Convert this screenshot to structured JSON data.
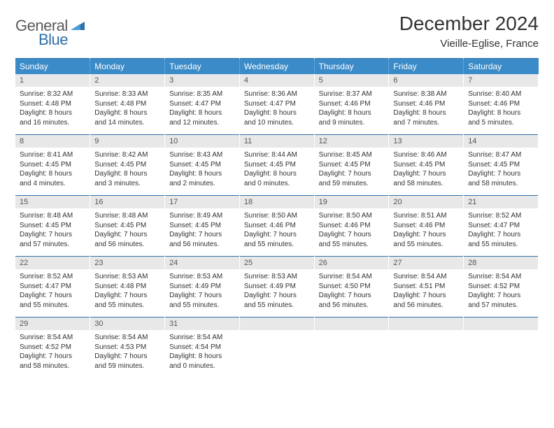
{
  "brand": {
    "part1": "General",
    "part2": "Blue"
  },
  "title": "December 2024",
  "location": "Vieille-Eglise, France",
  "colors": {
    "header_bg": "#3b8bc8",
    "header_text": "#ffffff",
    "date_band_bg": "#e8e8e8",
    "date_band_text": "#555555",
    "rule": "#2f70a8",
    "body_text": "#333333",
    "brand_gray": "#5a5a5a",
    "brand_blue": "#2f70a8",
    "page_bg": "#ffffff"
  },
  "typography": {
    "month_title_fontsize": 28,
    "location_fontsize": 15,
    "dayheader_fontsize": 12,
    "date_fontsize": 11,
    "body_fontsize": 10,
    "logo_fontsize": 22
  },
  "day_headers": [
    "Sunday",
    "Monday",
    "Tuesday",
    "Wednesday",
    "Thursday",
    "Friday",
    "Saturday"
  ],
  "weeks": [
    [
      {
        "date": "1",
        "sunrise": "Sunrise: 8:32 AM",
        "sunset": "Sunset: 4:48 PM",
        "daylight": "Daylight: 8 hours and 16 minutes."
      },
      {
        "date": "2",
        "sunrise": "Sunrise: 8:33 AM",
        "sunset": "Sunset: 4:48 PM",
        "daylight": "Daylight: 8 hours and 14 minutes."
      },
      {
        "date": "3",
        "sunrise": "Sunrise: 8:35 AM",
        "sunset": "Sunset: 4:47 PM",
        "daylight": "Daylight: 8 hours and 12 minutes."
      },
      {
        "date": "4",
        "sunrise": "Sunrise: 8:36 AM",
        "sunset": "Sunset: 4:47 PM",
        "daylight": "Daylight: 8 hours and 10 minutes."
      },
      {
        "date": "5",
        "sunrise": "Sunrise: 8:37 AM",
        "sunset": "Sunset: 4:46 PM",
        "daylight": "Daylight: 8 hours and 9 minutes."
      },
      {
        "date": "6",
        "sunrise": "Sunrise: 8:38 AM",
        "sunset": "Sunset: 4:46 PM",
        "daylight": "Daylight: 8 hours and 7 minutes."
      },
      {
        "date": "7",
        "sunrise": "Sunrise: 8:40 AM",
        "sunset": "Sunset: 4:46 PM",
        "daylight": "Daylight: 8 hours and 5 minutes."
      }
    ],
    [
      {
        "date": "8",
        "sunrise": "Sunrise: 8:41 AM",
        "sunset": "Sunset: 4:45 PM",
        "daylight": "Daylight: 8 hours and 4 minutes."
      },
      {
        "date": "9",
        "sunrise": "Sunrise: 8:42 AM",
        "sunset": "Sunset: 4:45 PM",
        "daylight": "Daylight: 8 hours and 3 minutes."
      },
      {
        "date": "10",
        "sunrise": "Sunrise: 8:43 AM",
        "sunset": "Sunset: 4:45 PM",
        "daylight": "Daylight: 8 hours and 2 minutes."
      },
      {
        "date": "11",
        "sunrise": "Sunrise: 8:44 AM",
        "sunset": "Sunset: 4:45 PM",
        "daylight": "Daylight: 8 hours and 0 minutes."
      },
      {
        "date": "12",
        "sunrise": "Sunrise: 8:45 AM",
        "sunset": "Sunset: 4:45 PM",
        "daylight": "Daylight: 7 hours and 59 minutes."
      },
      {
        "date": "13",
        "sunrise": "Sunrise: 8:46 AM",
        "sunset": "Sunset: 4:45 PM",
        "daylight": "Daylight: 7 hours and 58 minutes."
      },
      {
        "date": "14",
        "sunrise": "Sunrise: 8:47 AM",
        "sunset": "Sunset: 4:45 PM",
        "daylight": "Daylight: 7 hours and 58 minutes."
      }
    ],
    [
      {
        "date": "15",
        "sunrise": "Sunrise: 8:48 AM",
        "sunset": "Sunset: 4:45 PM",
        "daylight": "Daylight: 7 hours and 57 minutes."
      },
      {
        "date": "16",
        "sunrise": "Sunrise: 8:48 AM",
        "sunset": "Sunset: 4:45 PM",
        "daylight": "Daylight: 7 hours and 56 minutes."
      },
      {
        "date": "17",
        "sunrise": "Sunrise: 8:49 AM",
        "sunset": "Sunset: 4:45 PM",
        "daylight": "Daylight: 7 hours and 56 minutes."
      },
      {
        "date": "18",
        "sunrise": "Sunrise: 8:50 AM",
        "sunset": "Sunset: 4:46 PM",
        "daylight": "Daylight: 7 hours and 55 minutes."
      },
      {
        "date": "19",
        "sunrise": "Sunrise: 8:50 AM",
        "sunset": "Sunset: 4:46 PM",
        "daylight": "Daylight: 7 hours and 55 minutes."
      },
      {
        "date": "20",
        "sunrise": "Sunrise: 8:51 AM",
        "sunset": "Sunset: 4:46 PM",
        "daylight": "Daylight: 7 hours and 55 minutes."
      },
      {
        "date": "21",
        "sunrise": "Sunrise: 8:52 AM",
        "sunset": "Sunset: 4:47 PM",
        "daylight": "Daylight: 7 hours and 55 minutes."
      }
    ],
    [
      {
        "date": "22",
        "sunrise": "Sunrise: 8:52 AM",
        "sunset": "Sunset: 4:47 PM",
        "daylight": "Daylight: 7 hours and 55 minutes."
      },
      {
        "date": "23",
        "sunrise": "Sunrise: 8:53 AM",
        "sunset": "Sunset: 4:48 PM",
        "daylight": "Daylight: 7 hours and 55 minutes."
      },
      {
        "date": "24",
        "sunrise": "Sunrise: 8:53 AM",
        "sunset": "Sunset: 4:49 PM",
        "daylight": "Daylight: 7 hours and 55 minutes."
      },
      {
        "date": "25",
        "sunrise": "Sunrise: 8:53 AM",
        "sunset": "Sunset: 4:49 PM",
        "daylight": "Daylight: 7 hours and 55 minutes."
      },
      {
        "date": "26",
        "sunrise": "Sunrise: 8:54 AM",
        "sunset": "Sunset: 4:50 PM",
        "daylight": "Daylight: 7 hours and 56 minutes."
      },
      {
        "date": "27",
        "sunrise": "Sunrise: 8:54 AM",
        "sunset": "Sunset: 4:51 PM",
        "daylight": "Daylight: 7 hours and 56 minutes."
      },
      {
        "date": "28",
        "sunrise": "Sunrise: 8:54 AM",
        "sunset": "Sunset: 4:52 PM",
        "daylight": "Daylight: 7 hours and 57 minutes."
      }
    ],
    [
      {
        "date": "29",
        "sunrise": "Sunrise: 8:54 AM",
        "sunset": "Sunset: 4:52 PM",
        "daylight": "Daylight: 7 hours and 58 minutes."
      },
      {
        "date": "30",
        "sunrise": "Sunrise: 8:54 AM",
        "sunset": "Sunset: 4:53 PM",
        "daylight": "Daylight: 7 hours and 59 minutes."
      },
      {
        "date": "31",
        "sunrise": "Sunrise: 8:54 AM",
        "sunset": "Sunset: 4:54 PM",
        "daylight": "Daylight: 8 hours and 0 minutes."
      },
      {
        "empty": true
      },
      {
        "empty": true
      },
      {
        "empty": true
      },
      {
        "empty": true
      }
    ]
  ]
}
